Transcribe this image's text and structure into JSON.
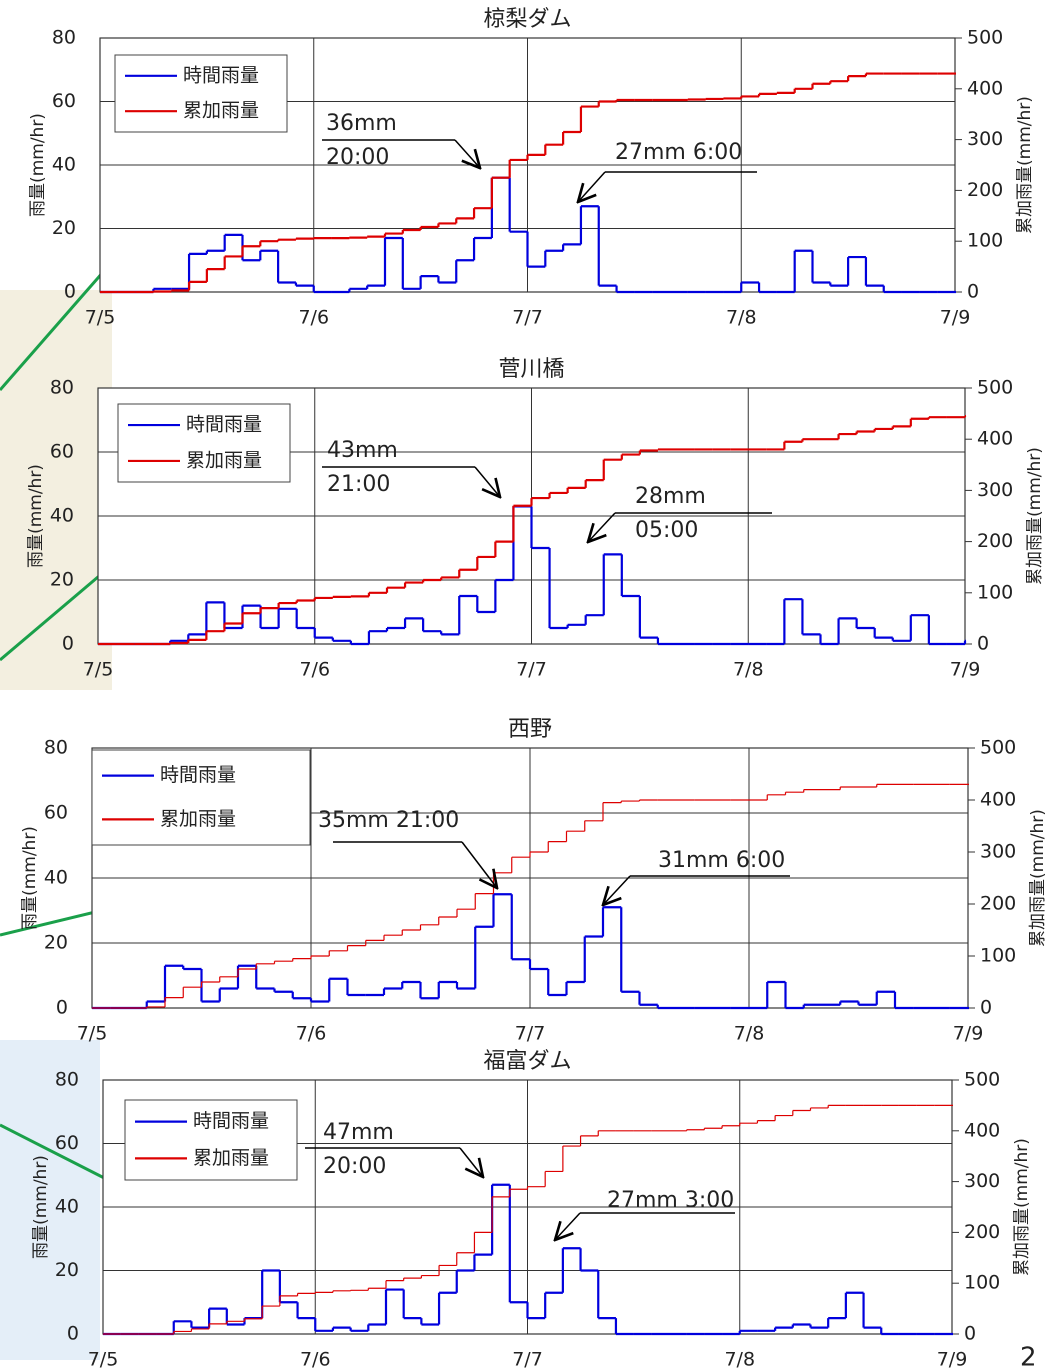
{
  "chart_data": [
    {
      "type": "line",
      "title": "椋梨ダム",
      "ylabel": "雨量(mm/hr)",
      "y2label": "累加雨量(mm/hr)",
      "x": [
        0,
        2,
        4,
        6,
        8,
        10,
        12,
        14,
        16,
        18,
        20,
        22,
        24,
        26,
        28,
        30,
        32,
        34,
        36,
        38,
        40,
        42,
        44,
        46,
        48,
        50,
        52,
        54,
        56,
        58,
        60,
        62,
        64,
        66,
        68,
        70,
        72,
        74,
        76,
        78,
        80,
        82,
        84,
        86,
        88,
        90,
        92,
        94,
        96
      ],
      "xlim": [
        0,
        96
      ],
      "xticks": [
        {
          "value": 0,
          "label": "7/5"
        },
        {
          "value": 24,
          "label": "7/6"
        },
        {
          "value": 48,
          "label": "7/7"
        },
        {
          "value": 72,
          "label": "7/8"
        },
        {
          "value": 96,
          "label": "7/9"
        }
      ],
      "ylim": [
        0,
        80
      ],
      "yticks": [
        0,
        20,
        40,
        60,
        80
      ],
      "y2lim": [
        0,
        500
      ],
      "y2ticks": [
        0,
        100,
        200,
        300,
        400,
        500
      ],
      "grid": true,
      "legend": "upper left",
      "series": [
        {
          "name": "時間雨量",
          "color": "#0000dd",
          "values": [
            0,
            0,
            0,
            1,
            1,
            12,
            13,
            18,
            10,
            13,
            3,
            2,
            0,
            0,
            1,
            2,
            17,
            1,
            5,
            3,
            10,
            17,
            36,
            19,
            8,
            13,
            15,
            27,
            2,
            0,
            0,
            0,
            0,
            0,
            0,
            0,
            3,
            0,
            0,
            13,
            3,
            2,
            11,
            2,
            0,
            0,
            0,
            0,
            0
          ]
        },
        {
          "name": "累加雨量",
          "color": "#dd0000",
          "axis": "y2",
          "values": [
            0,
            0,
            0,
            1,
            3,
            20,
            45,
            70,
            90,
            100,
            103,
            105,
            106,
            106,
            107,
            109,
            115,
            122,
            128,
            135,
            145,
            165,
            225,
            260,
            270,
            290,
            315,
            365,
            375,
            378,
            378,
            378,
            378,
            379,
            380,
            381,
            385,
            390,
            392,
            400,
            410,
            415,
            425,
            430,
            430,
            430,
            430,
            430,
            430
          ]
        }
      ],
      "annotations": [
        {
          "lines": [
            "36mm",
            "20:00"
          ]
        },
        {
          "lines": [
            "27mm 6:00"
          ]
        }
      ]
    },
    {
      "type": "line",
      "title": "菅川橋",
      "ylabel": "雨量(mm/hr)",
      "y2label": "累加雨量(mm/hr)",
      "x": [
        0,
        2,
        4,
        6,
        8,
        10,
        12,
        14,
        16,
        18,
        20,
        22,
        24,
        26,
        28,
        30,
        32,
        34,
        36,
        38,
        40,
        42,
        44,
        46,
        48,
        50,
        52,
        54,
        56,
        58,
        60,
        62,
        64,
        66,
        68,
        70,
        72,
        74,
        76,
        78,
        80,
        82,
        84,
        86,
        88,
        90,
        92,
        94,
        96
      ],
      "xlim": [
        0,
        96
      ],
      "xticks": [
        {
          "value": 0,
          "label": "7/5"
        },
        {
          "value": 24,
          "label": "7/6"
        },
        {
          "value": 48,
          "label": "7/7"
        },
        {
          "value": 72,
          "label": "7/8"
        },
        {
          "value": 96,
          "label": "7/9"
        }
      ],
      "ylim": [
        0,
        80
      ],
      "yticks": [
        0,
        20,
        40,
        60,
        80
      ],
      "y2lim": [
        0,
        500
      ],
      "y2ticks": [
        0,
        100,
        200,
        300,
        400,
        500
      ],
      "grid": true,
      "legend": "upper left",
      "series": [
        {
          "name": "時間雨量",
          "color": "#0000dd",
          "values": [
            0,
            0,
            0,
            0,
            1,
            3,
            13,
            5,
            12,
            5,
            11,
            5,
            2,
            1,
            0,
            4,
            5,
            8,
            4,
            3,
            15,
            10,
            20,
            43,
            30,
            5,
            6,
            9,
            28,
            15,
            2,
            0,
            0,
            0,
            0,
            0,
            0,
            0,
            14,
            3,
            0,
            8,
            5,
            2,
            1,
            9,
            0,
            0,
            1
          ]
        },
        {
          "name": "累加雨量",
          "color": "#dd0000",
          "axis": "y2",
          "values": [
            0,
            0,
            0,
            0,
            2,
            8,
            25,
            40,
            60,
            70,
            80,
            85,
            90,
            92,
            93,
            100,
            110,
            120,
            125,
            130,
            145,
            170,
            200,
            270,
            285,
            295,
            305,
            320,
            360,
            370,
            378,
            380,
            380,
            380,
            380,
            380,
            380,
            380,
            395,
            400,
            400,
            410,
            415,
            420,
            425,
            440,
            443,
            443,
            445
          ]
        }
      ],
      "annotations": [
        {
          "lines": [
            "43mm",
            "21:00"
          ]
        },
        {
          "lines": [
            "28mm",
            "05:00"
          ]
        }
      ]
    },
    {
      "type": "line",
      "title": "西野",
      "ylabel": "雨量(mm/hr)",
      "y2label": "累加雨量(mm/hr)",
      "x": [
        0,
        2,
        4,
        6,
        8,
        10,
        12,
        14,
        16,
        18,
        20,
        22,
        24,
        26,
        28,
        30,
        32,
        34,
        36,
        38,
        40,
        42,
        44,
        46,
        48,
        50,
        52,
        54,
        56,
        58,
        60,
        62,
        64,
        66,
        68,
        70,
        72,
        74,
        76,
        78,
        80,
        82,
        84,
        86,
        88,
        90,
        92,
        94,
        96
      ],
      "xlim": [
        0,
        96
      ],
      "xticks": [
        {
          "value": 0,
          "label": "7/5"
        },
        {
          "value": 24,
          "label": "7/6"
        },
        {
          "value": 48,
          "label": "7/7"
        },
        {
          "value": 72,
          "label": "7/8"
        },
        {
          "value": 96,
          "label": "7/9"
        }
      ],
      "ylim": [
        0,
        80
      ],
      "yticks": [
        0,
        20,
        40,
        60,
        80
      ],
      "y2lim": [
        0,
        500
      ],
      "y2ticks": [
        0,
        100,
        200,
        300,
        400,
        500
      ],
      "grid": true,
      "legend": "upper left",
      "series": [
        {
          "name": "時間雨量",
          "color": "#0000dd",
          "values": [
            0,
            0,
            0,
            2,
            13,
            12,
            2,
            6,
            13,
            6,
            5,
            3,
            2,
            9,
            4,
            4,
            6,
            8,
            3,
            8,
            6,
            25,
            35,
            15,
            12,
            4,
            8,
            22,
            31,
            5,
            1,
            0,
            0,
            0,
            0,
            0,
            0,
            8,
            0,
            1,
            1,
            2,
            1,
            5,
            0,
            0,
            0,
            0,
            0
          ]
        },
        {
          "name": "累加雨量",
          "color": "#dd0000",
          "axis": "y2",
          "values": [
            0,
            0,
            0,
            2,
            20,
            40,
            50,
            60,
            75,
            85,
            90,
            95,
            100,
            110,
            120,
            130,
            140,
            150,
            160,
            175,
            190,
            220,
            260,
            290,
            300,
            320,
            340,
            360,
            395,
            398,
            400,
            400,
            400,
            400,
            400,
            400,
            400,
            410,
            415,
            420,
            420,
            425,
            425,
            430,
            430,
            430,
            430,
            430,
            430
          ]
        }
      ],
      "annotations": [
        {
          "lines": [
            "35mm 21:00"
          ]
        },
        {
          "lines": [
            "31mm 6:00"
          ]
        }
      ]
    },
    {
      "type": "line",
      "title": "福富ダム",
      "ylabel": "雨量(mm/hr)",
      "y2label": "累加雨量(mm/hr)",
      "x": [
        0,
        2,
        4,
        6,
        8,
        10,
        12,
        14,
        16,
        18,
        20,
        22,
        24,
        26,
        28,
        30,
        32,
        34,
        36,
        38,
        40,
        42,
        44,
        46,
        48,
        50,
        52,
        54,
        56,
        58,
        60,
        62,
        64,
        66,
        68,
        70,
        72,
        74,
        76,
        78,
        80,
        82,
        84,
        86,
        88,
        90,
        92,
        94,
        96
      ],
      "xlim": [
        0,
        96
      ],
      "xticks": [
        {
          "value": 0,
          "label": "7/5"
        },
        {
          "value": 24,
          "label": "7/6"
        },
        {
          "value": 48,
          "label": "7/7"
        },
        {
          "value": 72,
          "label": "7/8"
        },
        {
          "value": 96,
          "label": "7/9"
        }
      ],
      "ylim": [
        0,
        80
      ],
      "yticks": [
        0,
        20,
        40,
        60,
        80
      ],
      "y2lim": [
        0,
        500
      ],
      "y2ticks": [
        0,
        100,
        200,
        300,
        400,
        500
      ],
      "grid": true,
      "legend": "upper left",
      "series": [
        {
          "name": "時間雨量",
          "color": "#0000dd",
          "values": [
            0,
            0,
            0,
            0,
            4,
            2,
            8,
            3,
            5,
            20,
            10,
            5,
            1,
            2,
            1,
            3,
            14,
            5,
            3,
            13,
            20,
            25,
            47,
            10,
            5,
            13,
            27,
            20,
            5,
            0,
            0,
            0,
            0,
            0,
            0,
            0,
            1,
            1,
            2,
            3,
            2,
            5,
            13,
            2,
            0,
            0,
            0,
            0,
            0
          ]
        },
        {
          "name": "累加雨量",
          "color": "#dd0000",
          "axis": "y2",
          "values": [
            0,
            0,
            0,
            0,
            5,
            10,
            20,
            25,
            30,
            55,
            75,
            80,
            82,
            85,
            86,
            90,
            105,
            110,
            115,
            135,
            160,
            200,
            270,
            285,
            290,
            320,
            370,
            390,
            400,
            400,
            400,
            400,
            400,
            402,
            405,
            410,
            415,
            420,
            430,
            440,
            445,
            450,
            450,
            450,
            450,
            450,
            450,
            450,
            450
          ]
        }
      ],
      "annotations": [
        {
          "lines": [
            "47mm",
            "20:00"
          ]
        },
        {
          "lines": [
            "27mm 3:00"
          ]
        }
      ]
    }
  ],
  "page_number": "2"
}
